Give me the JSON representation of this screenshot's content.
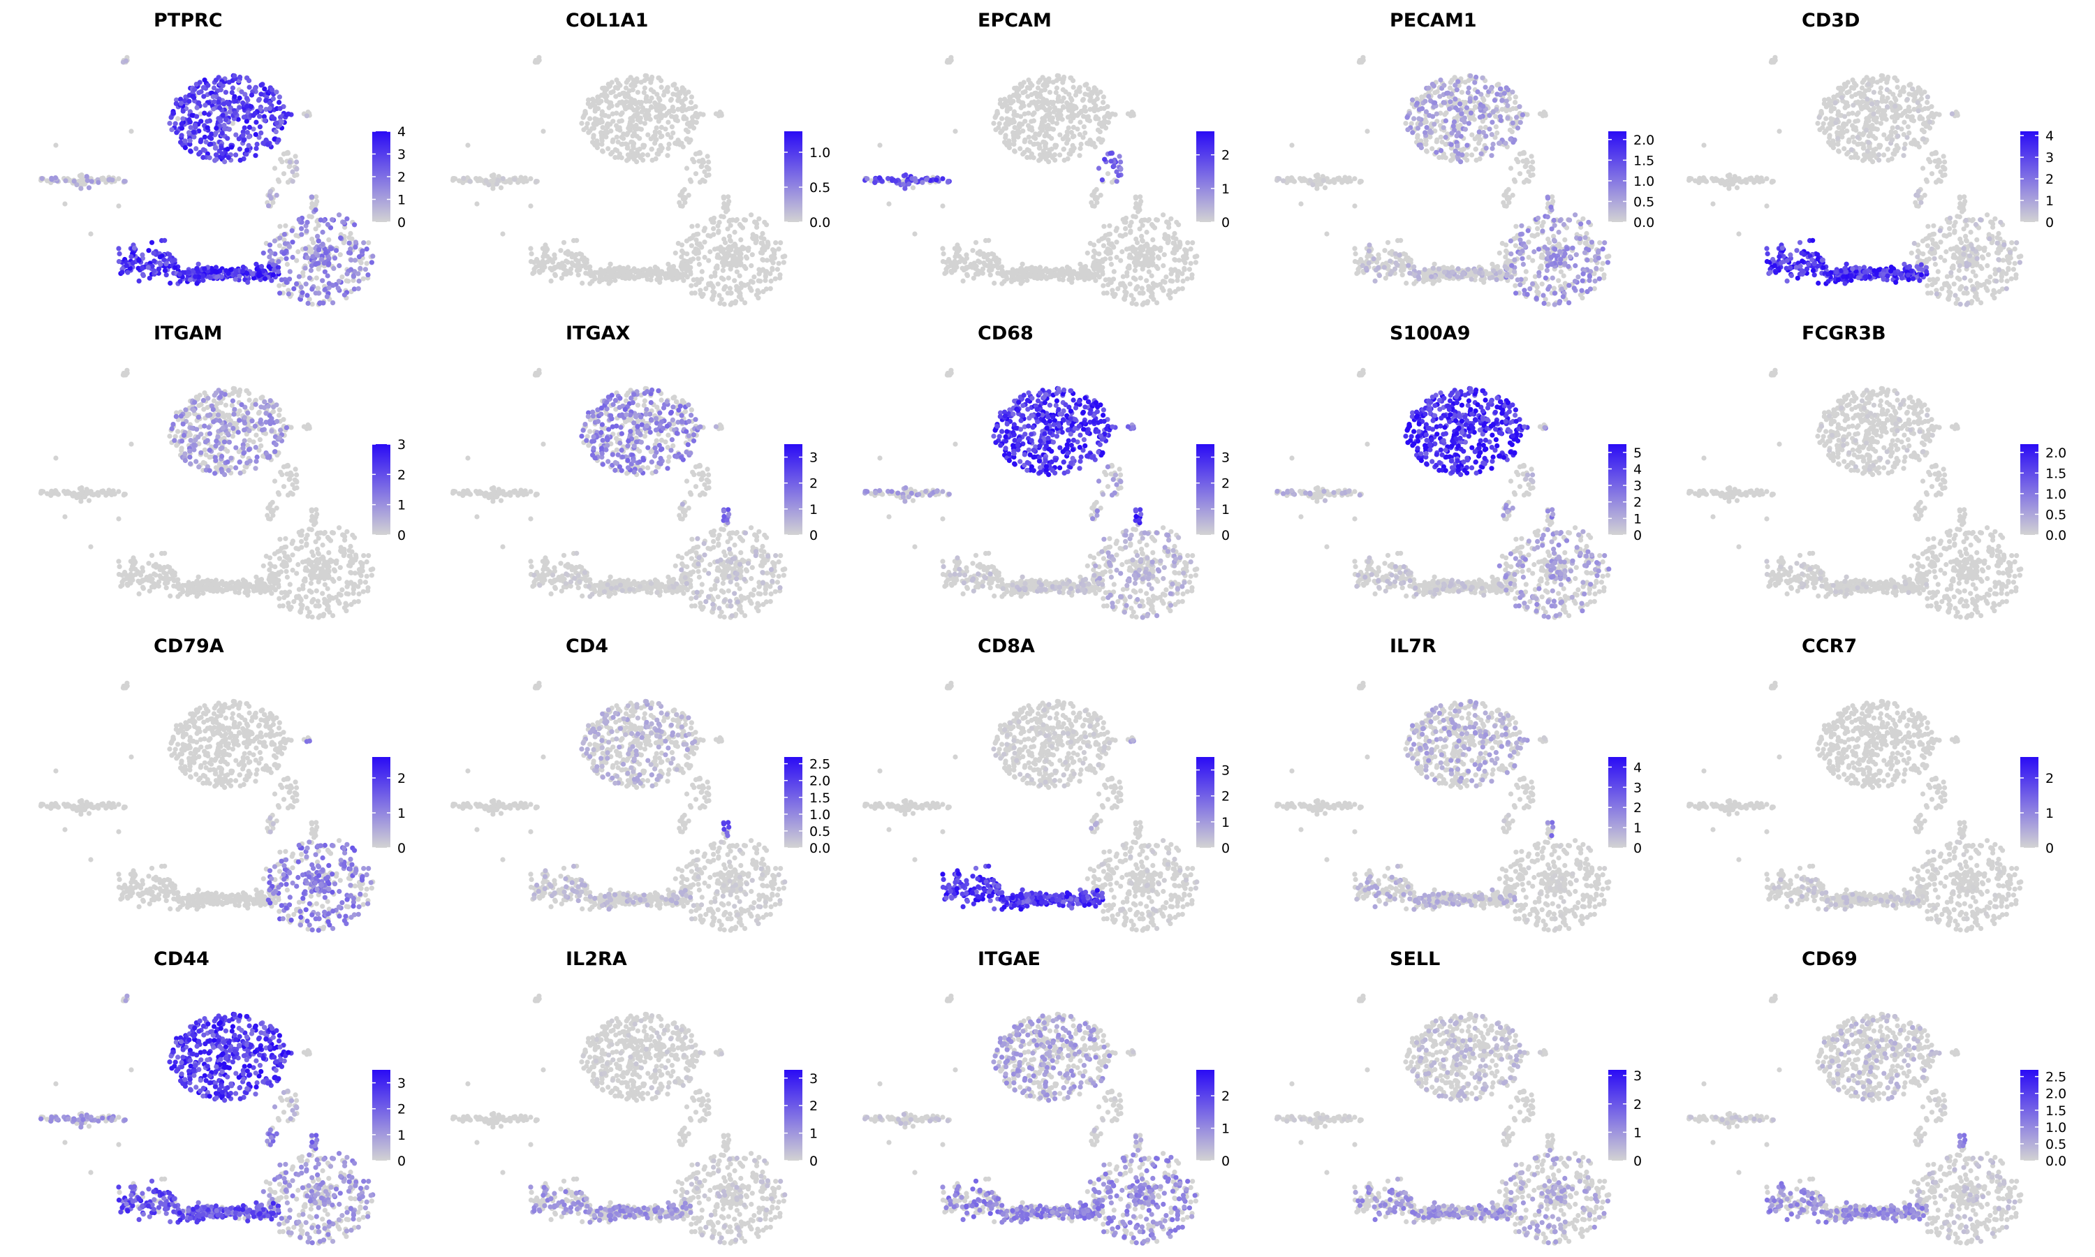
{
  "chart_data": {
    "type": "scatter",
    "layout": "feature-plot grid, 4 rows x 5 columns",
    "colors": {
      "low": "#d3d3d3",
      "high": "#2a0bf5",
      "background": "#ffffff"
    },
    "legend_placement": "right of each panel (continuous color bar)",
    "axes_visible": false,
    "grid": false,
    "panels": [
      {
        "title": "PTPRC",
        "legend_ticks": [
          "0",
          "1",
          "2",
          "3",
          "4"
        ],
        "max": 4,
        "expression": {
          "A": 0.8,
          "B": 0.45,
          "C": 0.85,
          "D": 0.25,
          "E": 0.15,
          "F": 0.2,
          "G": 0.15,
          "H": 0.2,
          "I": 0.5
        }
      },
      {
        "title": "COL1A1",
        "legend_ticks": [
          "0.0",
          "0.5",
          "1.0"
        ],
        "max": 1.3,
        "expression": {
          "A": 0,
          "B": 0,
          "C": 0,
          "D": 0.05,
          "E": 0,
          "F": 0,
          "G": 0,
          "H": 0,
          "I": 0
        }
      },
      {
        "title": "EPCAM",
        "legend_ticks": [
          "0",
          "1",
          "2"
        ],
        "max": 2.7,
        "expression": {
          "A": 0,
          "B": 0,
          "C": 0,
          "D": 0.7,
          "E": 0.6,
          "F": 0,
          "G": 0,
          "H": 0,
          "I": 0
        }
      },
      {
        "title": "PECAM1",
        "legend_ticks": [
          "0.0",
          "0.5",
          "1.0",
          "1.5",
          "2.0"
        ],
        "max": 2.2,
        "expression": {
          "A": 0.3,
          "B": 0.35,
          "C": 0.15,
          "D": 0.05,
          "E": 0,
          "F": 0,
          "G": 0.1,
          "H": 0.1,
          "I": 0.4
        }
      },
      {
        "title": "CD3D",
        "legend_ticks": [
          "0",
          "1",
          "2",
          "3",
          "4"
        ],
        "max": 4.2,
        "expression": {
          "A": 0.05,
          "B": 0.1,
          "C": 0.9,
          "D": 0,
          "E": 0,
          "F": 0,
          "G": 0.1,
          "H": 0.1,
          "I": 0
        }
      },
      {
        "title": "ITGAM",
        "legend_ticks": [
          "0",
          "1",
          "2",
          "3"
        ],
        "max": 3,
        "expression": {
          "A": 0.35,
          "B": 0,
          "C": 0,
          "D": 0,
          "E": 0,
          "F": 0,
          "G": 0,
          "H": 0,
          "I": 0
        }
      },
      {
        "title": "ITGAX",
        "legend_ticks": [
          "0",
          "1",
          "2",
          "3"
        ],
        "max": 3.5,
        "expression": {
          "A": 0.45,
          "B": 0.1,
          "C": 0.05,
          "D": 0,
          "E": 0,
          "F": 0,
          "G": 0.2,
          "H": 0.15,
          "I": 0.6
        }
      },
      {
        "title": "CD68",
        "legend_ticks": [
          "0",
          "1",
          "2",
          "3"
        ],
        "max": 3.5,
        "expression": {
          "A": 0.9,
          "B": 0.2,
          "C": 0.1,
          "D": 0.3,
          "E": 0.3,
          "F": 0,
          "G": 0.5,
          "H": 0.4,
          "I": 0.9
        }
      },
      {
        "title": "S100A9",
        "legend_ticks": [
          "0",
          "1",
          "2",
          "3",
          "4",
          "5"
        ],
        "max": 5.5,
        "expression": {
          "A": 0.95,
          "B": 0.3,
          "C": 0.1,
          "D": 0.2,
          "E": 0.15,
          "F": 0,
          "G": 0.4,
          "H": 0.3,
          "I": 0.4
        }
      },
      {
        "title": "FCGR3B",
        "legend_ticks": [
          "0.0",
          "0.5",
          "1.0",
          "1.5",
          "2.0"
        ],
        "max": 2.2,
        "expression": {
          "A": 0.05,
          "B": 0,
          "C": 0.05,
          "D": 0,
          "E": 0,
          "F": 0,
          "G": 0,
          "H": 0,
          "I": 0
        }
      },
      {
        "title": "CD79A",
        "legend_ticks": [
          "0",
          "1",
          "2"
        ],
        "max": 2.6,
        "expression": {
          "A": 0,
          "B": 0.5,
          "C": 0,
          "D": 0,
          "E": 0,
          "F": 0,
          "G": 0.4,
          "H": 0.1,
          "I": 0
        }
      },
      {
        "title": "CD4",
        "legend_ticks": [
          "0.0",
          "0.5",
          "1.0",
          "1.5",
          "2.0",
          "2.5"
        ],
        "max": 2.7,
        "expression": {
          "A": 0.2,
          "B": 0.05,
          "C": 0.15,
          "D": 0,
          "E": 0,
          "F": 0,
          "G": 0,
          "H": 0,
          "I": 0.6
        }
      },
      {
        "title": "CD8A",
        "legend_ticks": [
          "0",
          "1",
          "2",
          "3"
        ],
        "max": 3.5,
        "expression": {
          "A": 0.05,
          "B": 0.05,
          "C": 0.85,
          "D": 0,
          "E": 0,
          "F": 0,
          "G": 0.3,
          "H": 0.2,
          "I": 0
        }
      },
      {
        "title": "IL7R",
        "legend_ticks": [
          "0",
          "1",
          "2",
          "3",
          "4"
        ],
        "max": 4.5,
        "expression": {
          "A": 0.25,
          "B": 0.02,
          "C": 0.2,
          "D": 0,
          "E": 0,
          "F": 0,
          "G": 0.05,
          "H": 0.05,
          "I": 0.5
        }
      },
      {
        "title": "CCR7",
        "legend_ticks": [
          "0",
          "1",
          "2"
        ],
        "max": 2.6,
        "expression": {
          "A": 0,
          "B": 0.02,
          "C": 0.1,
          "D": 0,
          "E": 0,
          "F": 0,
          "G": 0,
          "H": 0,
          "I": 0
        }
      },
      {
        "title": "CD44",
        "legend_ticks": [
          "0",
          "1",
          "2",
          "3"
        ],
        "max": 3.5,
        "expression": {
          "A": 0.85,
          "B": 0.35,
          "C": 0.7,
          "D": 0.35,
          "E": 0.2,
          "F": 0.2,
          "G": 0.2,
          "H": 0.5,
          "I": 0.6
        }
      },
      {
        "title": "IL2RA",
        "legend_ticks": [
          "0",
          "1",
          "2",
          "3"
        ],
        "max": 3.3,
        "expression": {
          "A": 0.05,
          "B": 0.1,
          "C": 0.35,
          "D": 0,
          "E": 0,
          "F": 0,
          "G": 0.1,
          "H": 0,
          "I": 0
        }
      },
      {
        "title": "ITGAE",
        "legend_ticks": [
          "0",
          "1",
          "2"
        ],
        "max": 2.8,
        "expression": {
          "A": 0.3,
          "B": 0.4,
          "C": 0.45,
          "D": 0.1,
          "E": 0.05,
          "F": 0,
          "G": 0.1,
          "H": 0.1,
          "I": 0.3
        }
      },
      {
        "title": "SELL",
        "legend_ticks": [
          "0",
          "1",
          "2",
          "3"
        ],
        "max": 3.2,
        "expression": {
          "A": 0.15,
          "B": 0.25,
          "C": 0.35,
          "D": 0.05,
          "E": 0,
          "F": 0,
          "G": 0.05,
          "H": 0.05,
          "I": 0
        }
      },
      {
        "title": "CD69",
        "legend_ticks": [
          "0.0",
          "0.5",
          "1.0",
          "1.5",
          "2.0",
          "2.5"
        ],
        "max": 2.7,
        "expression": {
          "A": 0.15,
          "B": 0.1,
          "C": 0.4,
          "D": 0.1,
          "E": 0.05,
          "F": 0,
          "G": 0,
          "H": 0.05,
          "I": 0.4
        }
      }
    ]
  }
}
